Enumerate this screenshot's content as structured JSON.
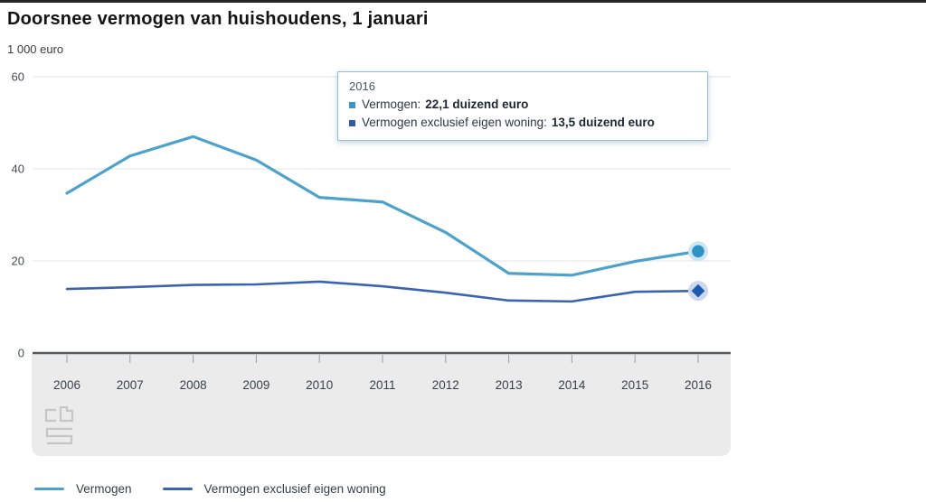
{
  "chart_data": {
    "type": "line",
    "title": "Doorsnee vermogen van huishoudens, 1 januari",
    "ylabel": "1 000 euro",
    "xlabel": "",
    "categories": [
      "2006",
      "2007",
      "2008",
      "2009",
      "2010",
      "2011",
      "2012",
      "2013",
      "2014",
      "2015",
      "2016"
    ],
    "series": [
      {
        "name": "Vermogen",
        "color": "#4CA2CB",
        "marker": "circle",
        "marker_color": "#2E93C4",
        "halo_color": "#CDE6F2",
        "values": [
          34.7,
          42.8,
          47.0,
          41.9,
          33.8,
          32.8,
          26.2,
          17.3,
          16.9,
          19.9,
          22.1
        ]
      },
      {
        "name": "Vermogen exclusief eigen woning",
        "color": "#3B64AE",
        "marker": "diamond",
        "marker_color": "#1F5AB1",
        "halo_color": "#CCD8EF",
        "values": [
          13.9,
          14.3,
          14.8,
          14.9,
          15.5,
          14.5,
          13.1,
          11.4,
          11.2,
          13.3,
          13.5
        ]
      }
    ],
    "ylim": [
      0,
      60
    ],
    "yticks": [
      0,
      20,
      40,
      60
    ],
    "grid": true,
    "legend_position": "bottom"
  },
  "tooltip": {
    "title": "2016",
    "items": [
      {
        "label": "Vermogen:",
        "value": "22,1 duizend euro",
        "color": "#3797C9"
      },
      {
        "label": "Vermogen exclusief eigen woning:",
        "value": "13,5 duizend euro",
        "color": "#2D5CAF"
      }
    ]
  },
  "branding": {
    "logo": "cbs-logo"
  }
}
